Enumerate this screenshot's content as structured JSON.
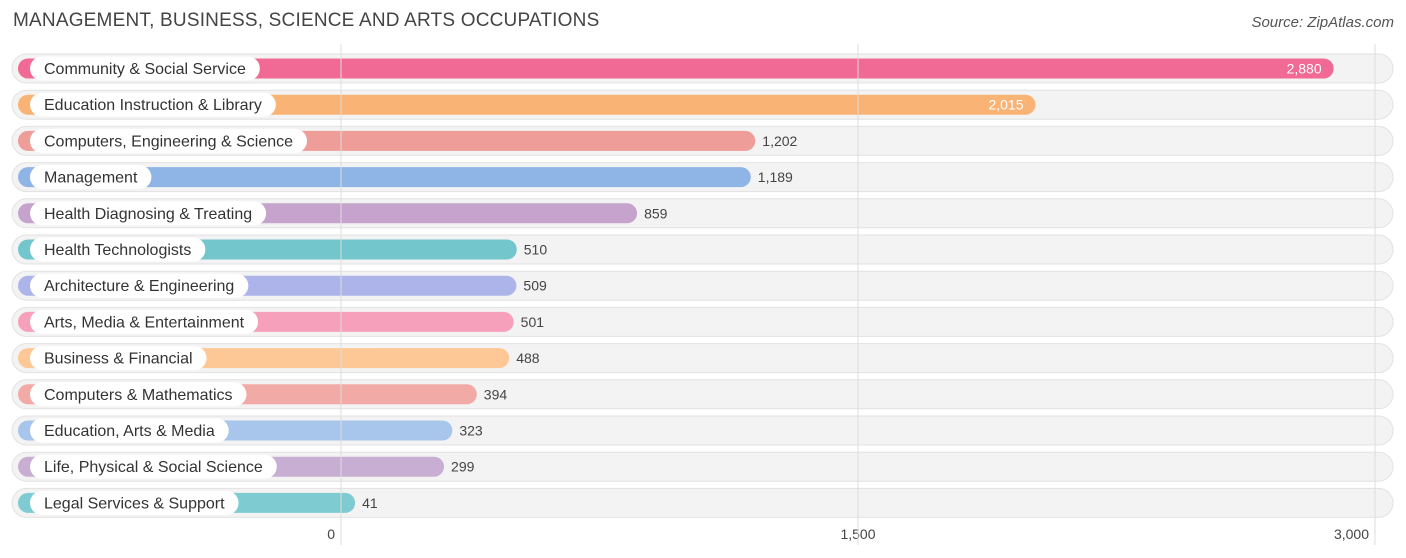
{
  "header": {
    "title": "MANAGEMENT, BUSINESS, SCIENCE AND ARTS OCCUPATIONS",
    "source": "Source: ZipAtlas.com"
  },
  "chart_data": {
    "type": "bar",
    "orientation": "horizontal",
    "title": "MANAGEMENT, BUSINESS, SCIENCE AND ARTS OCCUPATIONS",
    "xlabel": "",
    "ylabel": "",
    "xlim": [
      0,
      3000
    ],
    "grid": true,
    "categories": [
      "Community & Social Service",
      "Education Instruction & Library",
      "Computers, Engineering & Science",
      "Management",
      "Health Diagnosing & Treating",
      "Health Technologists",
      "Architecture & Engineering",
      "Arts, Media & Entertainment",
      "Business & Financial",
      "Computers & Mathematics",
      "Education, Arts & Media",
      "Life, Physical & Social Science",
      "Legal Services & Support"
    ],
    "values": [
      2880,
      2015,
      1202,
      1189,
      859,
      510,
      509,
      501,
      488,
      394,
      323,
      299,
      41
    ],
    "value_labels": [
      "2,880",
      "2,015",
      "1,202",
      "1,189",
      "859",
      "510",
      "509",
      "501",
      "488",
      "394",
      "323",
      "299",
      "41"
    ],
    "colors": [
      "#f06a95",
      "#f9b374",
      "#ee9d99",
      "#8eb5e6",
      "#c6a3cd",
      "#72c6cc",
      "#adb4ea",
      "#f7a0bb",
      "#fdc896",
      "#f1aaa5",
      "#a8c5eb",
      "#c9aed3",
      "#7fcbd2"
    ],
    "x_ticks": [
      0,
      1500,
      3000
    ],
    "x_tick_labels": [
      "0",
      "1,500",
      "3,000"
    ]
  }
}
